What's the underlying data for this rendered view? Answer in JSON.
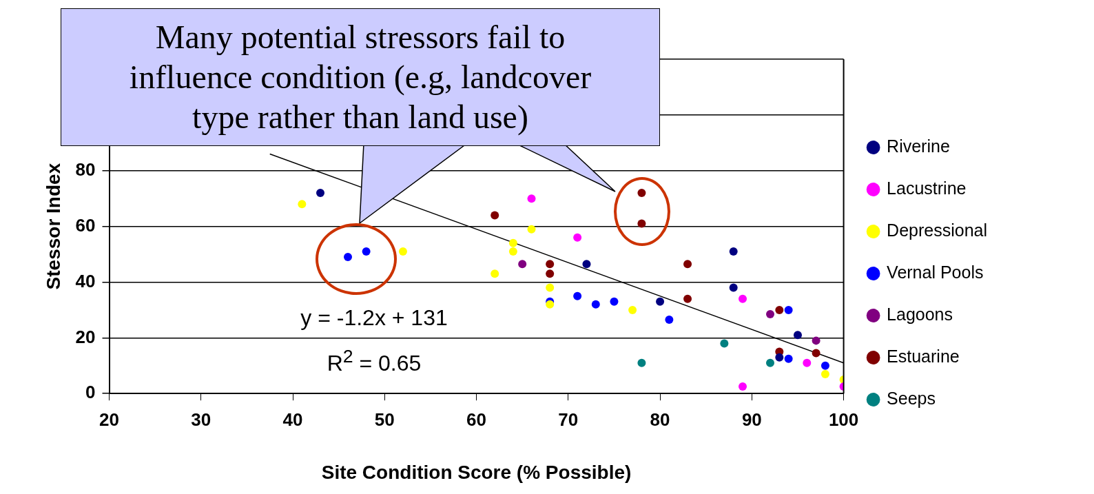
{
  "chart_data": {
    "type": "scatter",
    "xlabel": "Site Condition Score (% Possible)",
    "ylabel": "Stessor Index",
    "xlim": [
      20,
      100
    ],
    "xticks": [
      20,
      30,
      40,
      50,
      60,
      70,
      80,
      90,
      100
    ],
    "ylim": [
      0,
      120
    ],
    "yticks": [
      0,
      20,
      40,
      60,
      80,
      {
        "value": 100,
        "label": null
      },
      {
        "value": 120,
        "label": null
      }
    ],
    "grid": "y",
    "legend": "right",
    "marker": "circle",
    "annotations": [
      "Many potential stressors fail to influence condition (e.g, landcover type rather than land use)",
      "y = -1.2x + 131",
      "R$^{2}$ = 0.65"
    ],
    "series": [
      {
        "name": "Riverine",
        "color": "#000080",
        "x": [
          43,
          72,
          88,
          88,
          80,
          95,
          93
        ],
        "values": [
          72,
          46.5,
          51,
          38,
          33,
          21,
          13
        ]
      },
      {
        "name": "Lacustrine",
        "color": "#ff00ff",
        "x": [
          66,
          71,
          89,
          89,
          96,
          100
        ],
        "values": [
          70,
          56,
          34,
          2.5,
          11,
          2.5
        ]
      },
      {
        "name": "Depressional",
        "color": "#ffff00",
        "x": [
          41,
          52,
          66,
          64,
          64,
          62,
          68,
          68,
          77,
          98,
          100
        ],
        "values": [
          68,
          51,
          59,
          54,
          51,
          43,
          38,
          32,
          30,
          7,
          5
        ]
      },
      {
        "name": "Vernal Pools",
        "color": "#0000ff",
        "x": [
          46,
          48,
          68,
          71,
          73,
          75,
          81,
          94,
          94,
          98
        ],
        "values": [
          49,
          51,
          33,
          35,
          32,
          33,
          26.5,
          30,
          12.5,
          10
        ]
      },
      {
        "name": "Lagoons",
        "color": "#800080",
        "x": [
          65,
          92,
          97
        ],
        "values": [
          46.5,
          28.5,
          19
        ]
      },
      {
        "name": "Estuarine",
        "color": "#800000",
        "x": [
          62,
          68,
          68,
          78,
          78,
          83,
          83,
          93,
          93,
          97
        ],
        "values": [
          64,
          46.5,
          43,
          72,
          61,
          46.5,
          34,
          30,
          15,
          14.5
        ]
      },
      {
        "name": "Seeps",
        "color": "#008080",
        "x": [
          78,
          87,
          92
        ],
        "values": [
          11,
          18,
          11
        ]
      },
      {
        "type": "line",
        "color": "#000000",
        "x": [
          37.5,
          100
        ],
        "values": [
          86,
          11
        ],
        "marker": "none"
      }
    ]
  }
}
